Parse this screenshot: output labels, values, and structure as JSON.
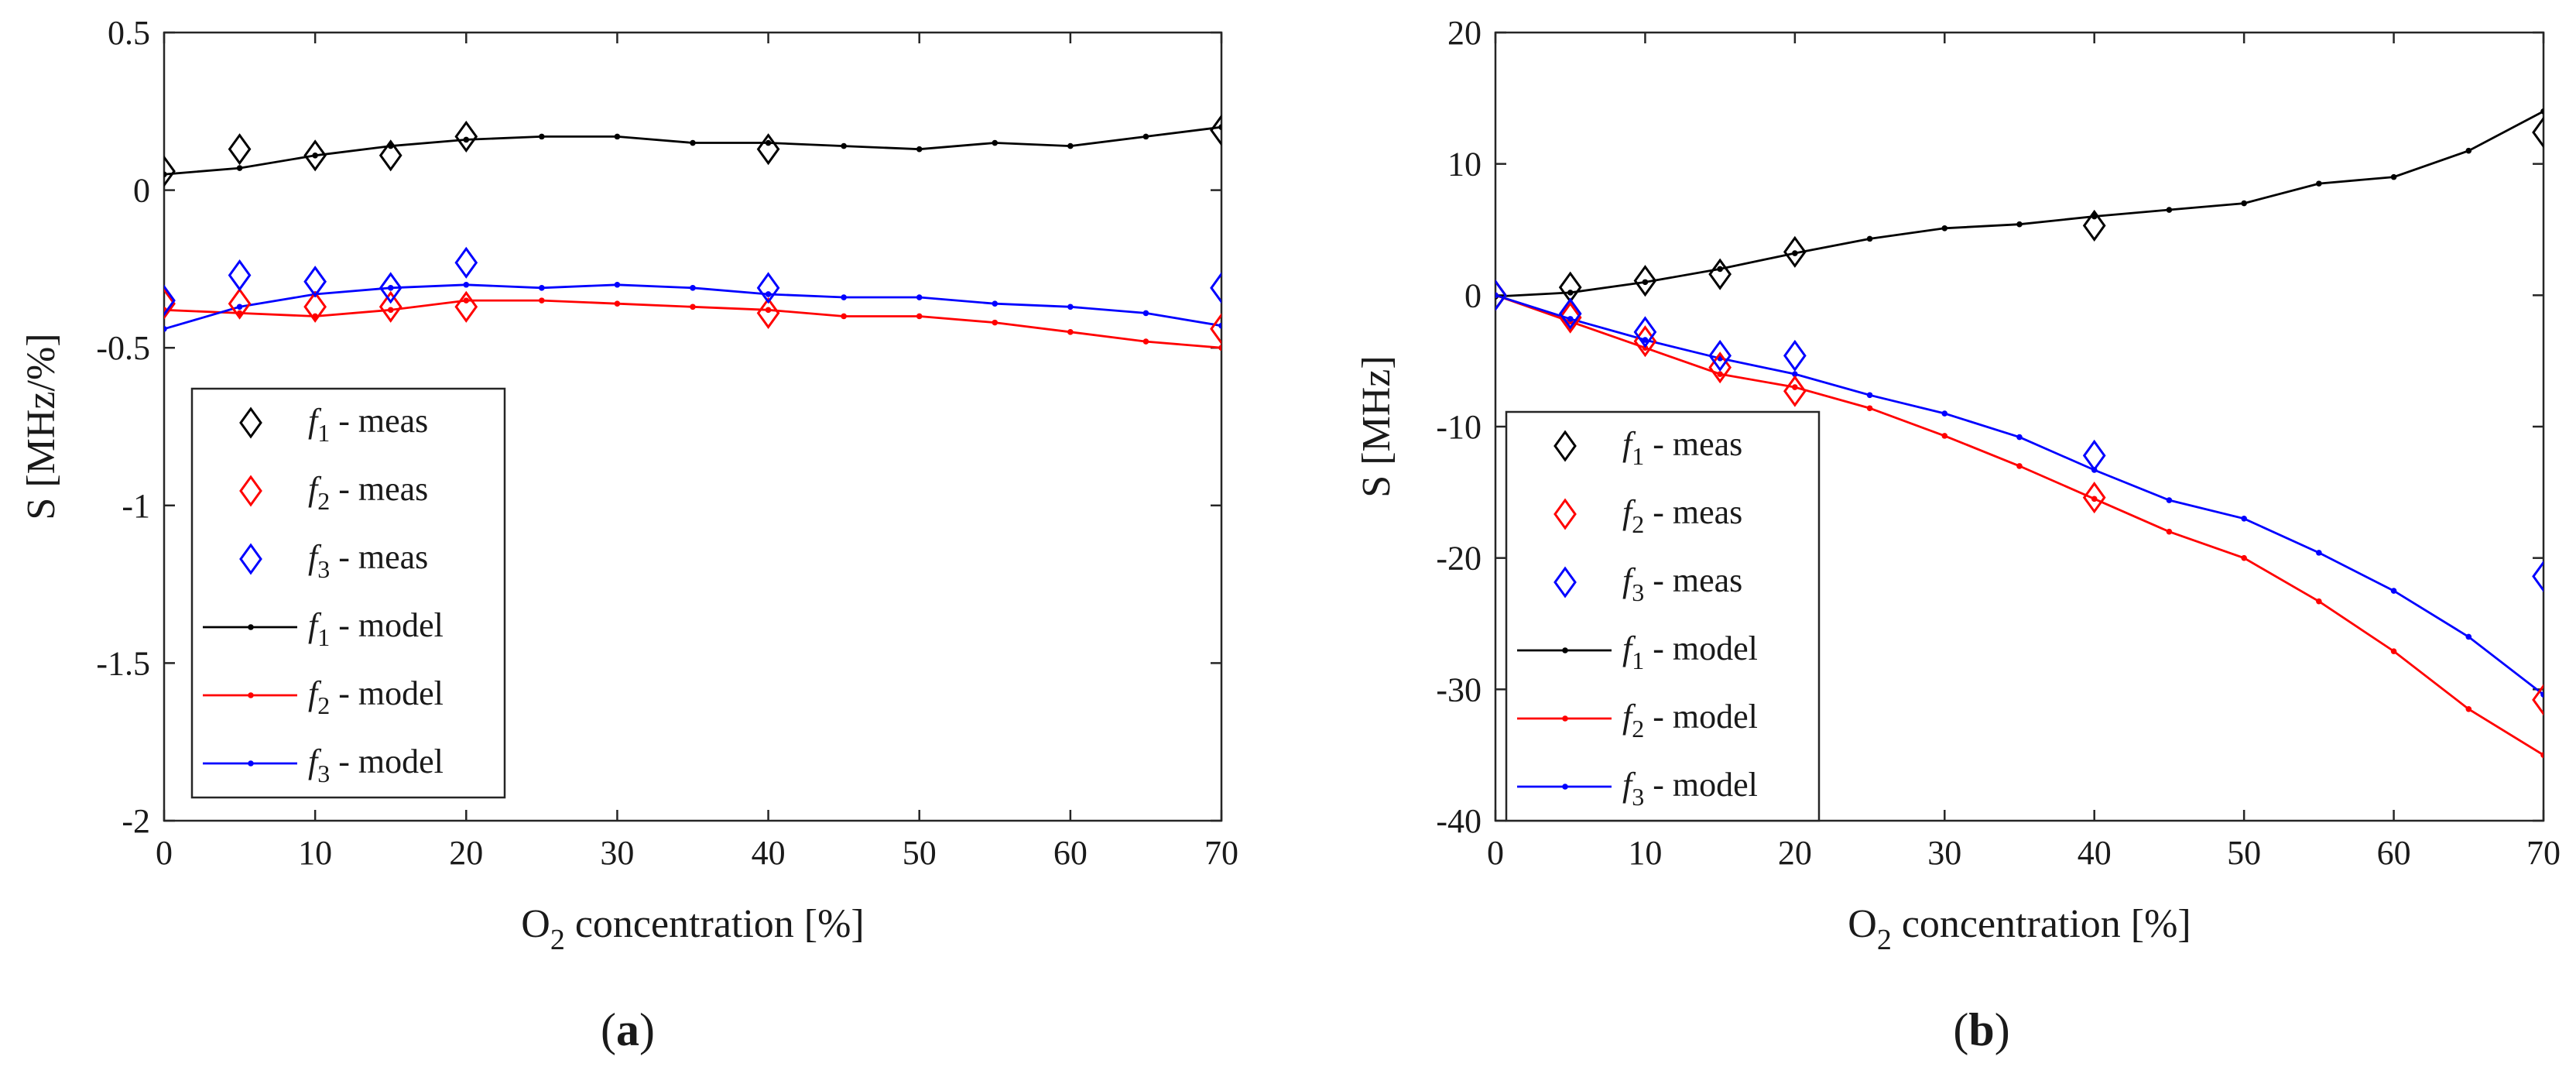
{
  "chart_data": [
    {
      "type": "line",
      "panel_label": "a",
      "xlabel": "O2 concentration [%]",
      "ylabel": "S [MHz/%]",
      "xlim": [
        0,
        70
      ],
      "ylim": [
        -2,
        0.5
      ],
      "xticks": [
        0,
        10,
        20,
        30,
        40,
        50,
        60,
        70
      ],
      "yticks": [
        -2,
        -1.5,
        -1,
        -0.5,
        0,
        0.5
      ],
      "ytick_labels": [
        "-2",
        "-1.5",
        "-1",
        "-0.5",
        "0",
        "0.5"
      ],
      "grid": false,
      "legend_position": "lower-left",
      "series": [
        {
          "name": "f1 - meas",
          "legend_main": "f",
          "legend_sub": "1",
          "legend_suffix": " - meas",
          "kind": "meas",
          "color": "#000000",
          "x": [
            0,
            5,
            10,
            15,
            20,
            40,
            70
          ],
          "y": [
            0.06,
            0.13,
            0.11,
            0.11,
            0.17,
            0.13,
            0.19
          ]
        },
        {
          "name": "f2 - meas",
          "legend_main": "f",
          "legend_sub": "2",
          "legend_suffix": " - meas",
          "kind": "meas",
          "color": "#ff0000",
          "x": [
            0,
            5,
            10,
            15,
            20,
            40,
            70
          ],
          "y": [
            -0.36,
            -0.36,
            -0.37,
            -0.37,
            -0.37,
            -0.39,
            -0.44
          ]
        },
        {
          "name": "f3 - meas",
          "legend_main": "f",
          "legend_sub": "3",
          "legend_suffix": " - meas",
          "kind": "meas",
          "color": "#0000ff",
          "x": [
            0,
            5,
            10,
            15,
            20,
            40,
            70
          ],
          "y": [
            -0.35,
            -0.27,
            -0.29,
            -0.31,
            -0.23,
            -0.31,
            -0.31
          ]
        },
        {
          "name": "f1 - model",
          "legend_main": "f",
          "legend_sub": "1",
          "legend_suffix": " - model",
          "kind": "model",
          "color": "#000000",
          "x": [
            0,
            5,
            10,
            15,
            20,
            25,
            30,
            35,
            40,
            45,
            50,
            55,
            60,
            65,
            70
          ],
          "y": [
            0.05,
            0.07,
            0.11,
            0.14,
            0.16,
            0.17,
            0.17,
            0.15,
            0.15,
            0.14,
            0.13,
            0.15,
            0.14,
            0.17,
            0.2
          ]
        },
        {
          "name": "f2 - model",
          "legend_main": "f",
          "legend_sub": "2",
          "legend_suffix": " - model",
          "kind": "model",
          "color": "#ff0000",
          "x": [
            0,
            5,
            10,
            15,
            20,
            25,
            30,
            35,
            40,
            45,
            50,
            55,
            60,
            65,
            70
          ],
          "y": [
            -0.38,
            -0.39,
            -0.4,
            -0.38,
            -0.35,
            -0.35,
            -0.36,
            -0.37,
            -0.38,
            -0.4,
            -0.4,
            -0.42,
            -0.45,
            -0.48,
            -0.5
          ]
        },
        {
          "name": "f3 - model",
          "legend_main": "f",
          "legend_sub": "3",
          "legend_suffix": " - model",
          "kind": "model",
          "color": "#0000ff",
          "x": [
            0,
            5,
            10,
            15,
            20,
            25,
            30,
            35,
            40,
            45,
            50,
            55,
            60,
            65,
            70
          ],
          "y": [
            -0.44,
            -0.37,
            -0.33,
            -0.31,
            -0.3,
            -0.31,
            -0.3,
            -0.31,
            -0.33,
            -0.34,
            -0.34,
            -0.36,
            -0.37,
            -0.39,
            -0.43
          ]
        }
      ]
    },
    {
      "type": "line",
      "panel_label": "b",
      "xlabel": "O2 concentration [%]",
      "ylabel": "S [MHz]",
      "xlim": [
        0,
        70
      ],
      "ylim": [
        -40,
        20
      ],
      "xticks": [
        0,
        10,
        20,
        30,
        40,
        50,
        60,
        70
      ],
      "yticks": [
        -40,
        -30,
        -20,
        -10,
        0,
        10,
        20
      ],
      "ytick_labels": [
        "-40",
        "-30",
        "-20",
        "-10",
        "0",
        "10",
        "20"
      ],
      "grid": false,
      "legend_position": "lower-left",
      "series": [
        {
          "name": "f1 - meas",
          "legend_main": "f",
          "legend_sub": "1",
          "legend_suffix": " - meas",
          "kind": "meas",
          "color": "#000000",
          "x": [
            0,
            5,
            10,
            15,
            20,
            40,
            70
          ],
          "y": [
            0,
            0.6,
            1.1,
            1.6,
            3.3,
            5.3,
            12.4
          ]
        },
        {
          "name": "f2 - meas",
          "legend_main": "f",
          "legend_sub": "2",
          "legend_suffix": " - meas",
          "kind": "meas",
          "color": "#ff0000",
          "x": [
            0,
            5,
            10,
            15,
            20,
            40,
            70
          ],
          "y": [
            0,
            -1.7,
            -3.5,
            -5.5,
            -7.3,
            -15.4,
            -30.8
          ]
        },
        {
          "name": "f3 - meas",
          "legend_main": "f",
          "legend_sub": "3",
          "legend_suffix": " - meas",
          "kind": "meas",
          "color": "#0000ff",
          "x": [
            0,
            5,
            10,
            15,
            20,
            40,
            70
          ],
          "y": [
            0,
            -1.4,
            -2.8,
            -4.6,
            -4.6,
            -12.2,
            -21.4
          ]
        },
        {
          "name": "f1 - model",
          "legend_main": "f",
          "legend_sub": "1",
          "legend_suffix": " - model",
          "kind": "model",
          "color": "#000000",
          "x": [
            0,
            5,
            10,
            15,
            20,
            25,
            30,
            35,
            40,
            45,
            50,
            55,
            60,
            65,
            70
          ],
          "y": [
            -0.1,
            0.2,
            1.0,
            2.0,
            3.2,
            4.3,
            5.1,
            5.4,
            6.0,
            6.5,
            7.0,
            8.5,
            9.0,
            11.0,
            14.0
          ]
        },
        {
          "name": "f2 - model",
          "legend_main": "f",
          "legend_sub": "2",
          "legend_suffix": " - model",
          "kind": "model",
          "color": "#ff0000",
          "x": [
            0,
            5,
            10,
            15,
            20,
            25,
            30,
            35,
            40,
            45,
            50,
            55,
            60,
            65,
            70
          ],
          "y": [
            0,
            -2.0,
            -4.0,
            -6.0,
            -7.0,
            -8.6,
            -10.7,
            -13.0,
            -15.5,
            -18.0,
            -20.0,
            -23.3,
            -27.1,
            -31.5,
            -35.0
          ]
        },
        {
          "name": "f3 - model",
          "legend_main": "f",
          "legend_sub": "3",
          "legend_suffix": " - model",
          "kind": "model",
          "color": "#0000ff",
          "x": [
            0,
            5,
            10,
            15,
            20,
            25,
            30,
            35,
            40,
            45,
            50,
            55,
            60,
            65,
            70
          ],
          "y": [
            0,
            -1.8,
            -3.4,
            -4.8,
            -6.0,
            -7.6,
            -9.0,
            -10.8,
            -13.3,
            -15.6,
            -17.0,
            -19.6,
            -22.5,
            -26.0,
            -30.4
          ]
        }
      ]
    }
  ]
}
